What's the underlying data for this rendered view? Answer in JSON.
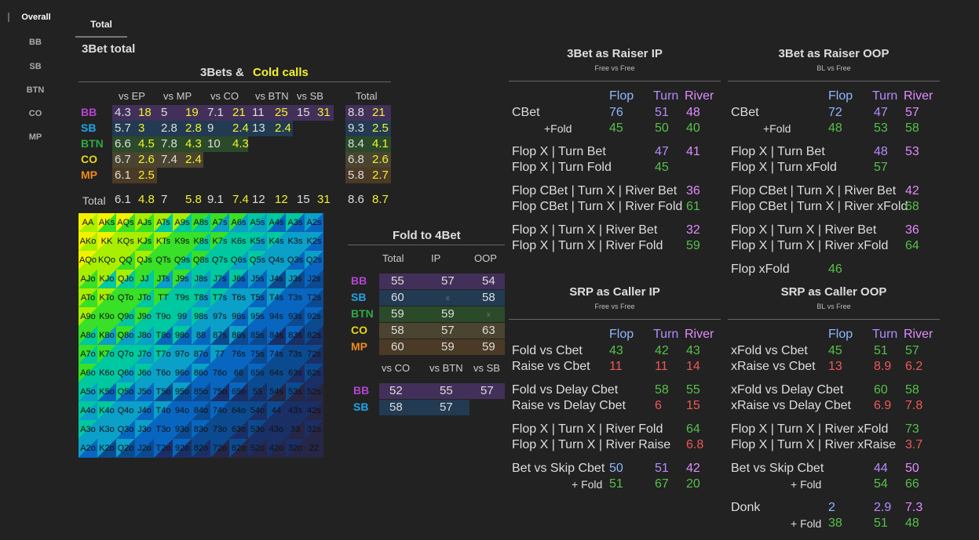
{
  "nav": {
    "items": [
      "Overall",
      "BB",
      "SB",
      "BTN",
      "CO",
      "MP"
    ]
  },
  "tab": "Total",
  "page_title": "3Bet total",
  "threebet": {
    "title_a": "3Bets &",
    "title_b": "Cold calls",
    "cols": [
      "vs EP",
      "vs MP",
      "vs CO",
      "vs BTN",
      "vs SB",
      "Total"
    ],
    "rows": [
      {
        "pos": "BB",
        "cells": [
          "4.3",
          "18",
          "5",
          "19",
          "7.1",
          "21",
          "11",
          "25",
          "15",
          "31"
        ],
        "total": [
          "8.8",
          "21"
        ]
      },
      {
        "pos": "SB",
        "cells": [
          "5.7",
          "3",
          "2.8",
          "2.8",
          "9",
          "2.4",
          "13",
          "2.4",
          "",
          ""
        ],
        "total": [
          "9.3",
          "2.5"
        ]
      },
      {
        "pos": "BTN",
        "cells": [
          "6.6",
          "4.5",
          "7.8",
          "4.3",
          "10",
          "4.3",
          "",
          "",
          "",
          ""
        ],
        "total": [
          "8.4",
          "4.1"
        ]
      },
      {
        "pos": "CO",
        "cells": [
          "6.7",
          "2.6",
          "7.4",
          "2.4",
          "",
          "",
          "",
          "",
          "",
          ""
        ],
        "total": [
          "6.8",
          "2.6"
        ]
      },
      {
        "pos": "MP",
        "cells": [
          "6.1",
          "2.5",
          "",
          "",
          "",
          "",
          "",
          "",
          "",
          ""
        ],
        "total": [
          "5.8",
          "2.7"
        ]
      }
    ],
    "total_label": "Total",
    "totals": [
      "6.1",
      "4.8",
      "7",
      "5.8",
      "9.1",
      "7.4",
      "12",
      "12",
      "15",
      "31"
    ],
    "grand_total": [
      "8.6",
      "8.7"
    ]
  },
  "matrix": {
    "ranks": [
      "A",
      "K",
      "Q",
      "J",
      "T",
      "9",
      "8",
      "7",
      "6",
      "5",
      "4",
      "3",
      "2"
    ]
  },
  "fold4bet": {
    "title": "Fold to 4Bet",
    "cols": [
      "Total",
      "IP",
      "OOP"
    ],
    "rows": [
      {
        "pos": "BB",
        "vals": [
          "55",
          "57",
          "54"
        ]
      },
      {
        "pos": "SB",
        "vals": [
          "60",
          "x",
          "58"
        ]
      },
      {
        "pos": "BTN",
        "vals": [
          "59",
          "59",
          "x"
        ]
      },
      {
        "pos": "CO",
        "vals": [
          "58",
          "57",
          "63"
        ]
      },
      {
        "pos": "MP",
        "vals": [
          "60",
          "59",
          "59"
        ]
      }
    ],
    "cols2": [
      "vs CO",
      "vs BTN",
      "vs SB"
    ],
    "rows2": [
      {
        "pos": "BB",
        "vals": [
          "52",
          "55",
          "57"
        ]
      },
      {
        "pos": "SB",
        "vals": [
          "58",
          "57",
          ""
        ]
      }
    ]
  },
  "panels": [
    {
      "title": "3Bet as Raiser IP",
      "sub": "Free vs Free",
      "cols": [
        "Flop",
        "Turn",
        "River"
      ],
      "lines": [
        {
          "l": "CBet",
          "v": [
            "76",
            "51",
            "48"
          ],
          "c": [
            "b",
            "p",
            "pk"
          ]
        },
        {
          "l": "+Fold",
          "v": [
            "45",
            "50",
            "40"
          ],
          "c": [
            "g",
            "g",
            "g"
          ],
          "ind": true
        },
        {
          "l": "Flop X | Turn Bet",
          "v": [
            "",
            "47",
            "41"
          ],
          "c": [
            "",
            "p",
            "pk"
          ],
          "gap": true
        },
        {
          "l": "Flop X | Turn Fold",
          "v": [
            "",
            "45",
            ""
          ],
          "c": [
            "",
            "g",
            ""
          ]
        },
        {
          "l": "Flop CBet | Turn X | River Bet",
          "v": [
            "",
            "",
            "36"
          ],
          "c": [
            "",
            "",
            "pk"
          ],
          "gap": true
        },
        {
          "l": "Flop CBet | Turn X | River Fold",
          "v": [
            "",
            "",
            "61"
          ],
          "c": [
            "",
            "",
            "g"
          ]
        },
        {
          "l": "Flop X | Turn X | River Bet",
          "v": [
            "",
            "",
            "32"
          ],
          "c": [
            "",
            "",
            "pk"
          ],
          "gap": true
        },
        {
          "l": "Flop X | Turn X | River Fold",
          "v": [
            "",
            "",
            "59"
          ],
          "c": [
            "",
            "",
            "g"
          ]
        }
      ]
    },
    {
      "title": "3Bet as Raiser OOP",
      "sub": "BL vs Free",
      "cols": [
        "Flop",
        "Turn",
        "River"
      ],
      "lines": [
        {
          "l": "CBet",
          "v": [
            "72",
            "47",
            "57"
          ],
          "c": [
            "b",
            "p",
            "pk"
          ]
        },
        {
          "l": "+Fold",
          "v": [
            "48",
            "53",
            "58"
          ],
          "c": [
            "g",
            "g",
            "g"
          ],
          "ind": true
        },
        {
          "l": "Flop X | Turn Bet",
          "v": [
            "",
            "48",
            "53"
          ],
          "c": [
            "",
            "p",
            "pk"
          ],
          "gap": true
        },
        {
          "l": "Flop X | Turn xFold",
          "v": [
            "",
            "57",
            ""
          ],
          "c": [
            "",
            "g",
            ""
          ]
        },
        {
          "l": "Flop CBet | Turn X | River Bet",
          "v": [
            "",
            "",
            "42"
          ],
          "c": [
            "",
            "",
            "pk"
          ],
          "gap": true
        },
        {
          "l": "Flop CBet | Turn X | River xFold",
          "v": [
            "",
            "",
            "68"
          ],
          "c": [
            "",
            "",
            "g"
          ]
        },
        {
          "l": "Flop X | Turn X | River Bet",
          "v": [
            "",
            "",
            "36"
          ],
          "c": [
            "",
            "",
            "pk"
          ],
          "gap": true
        },
        {
          "l": "Flop X | Turn X | River xFold",
          "v": [
            "",
            "",
            "64"
          ],
          "c": [
            "",
            "",
            "g"
          ]
        },
        {
          "l": "Flop xFold",
          "v": [
            "46",
            "",
            ""
          ],
          "c": [
            "g",
            "",
            ""
          ],
          "gap": true
        }
      ]
    },
    {
      "title": "SRP as Caller IP",
      "sub": "Free vs Free",
      "cols": [
        "Flop",
        "Turn",
        "River"
      ],
      "lines": [
        {
          "l": "Fold vs Cbet",
          "v": [
            "43",
            "42",
            "43"
          ],
          "c": [
            "g",
            "g",
            "g"
          ]
        },
        {
          "l": "Raise vs Cbet",
          "v": [
            "11",
            "11",
            "14"
          ],
          "c": [
            "r",
            "r",
            "r"
          ]
        },
        {
          "l": "Fold vs Delay Cbet",
          "v": [
            "",
            "58",
            "55"
          ],
          "c": [
            "",
            "g",
            "g"
          ],
          "gap": true
        },
        {
          "l": "Raise vs Delay Cbet",
          "v": [
            "",
            "6",
            "15"
          ],
          "c": [
            "",
            "r",
            "r"
          ]
        },
        {
          "l": "Flop X | Turn X | River Fold",
          "v": [
            "",
            "",
            "64"
          ],
          "c": [
            "",
            "",
            "g"
          ],
          "gap": true
        },
        {
          "l": "Flop X | Turn X | River Raise",
          "v": [
            "",
            "",
            "6.8"
          ],
          "c": [
            "",
            "",
            "r"
          ]
        },
        {
          "l": "Bet vs Skip Cbet",
          "v": [
            "50",
            "51",
            "42"
          ],
          "c": [
            "b",
            "p",
            "pk"
          ],
          "gap": true
        },
        {
          "l": "+ Fold",
          "v": [
            "51",
            "67",
            "20"
          ],
          "c": [
            "g",
            "g",
            "g"
          ],
          "ind": true
        }
      ]
    },
    {
      "title": "SRP as Caller OOP",
      "sub": "BL vs Free",
      "cols": [
        "Flop",
        "Turn",
        "River"
      ],
      "lines": [
        {
          "l": "xFold vs Cbet",
          "v": [
            "45",
            "51",
            "57"
          ],
          "c": [
            "g",
            "g",
            "g"
          ]
        },
        {
          "l": "xRaise vs Cbet",
          "v": [
            "13",
            "8.9",
            "6.2"
          ],
          "c": [
            "r",
            "r",
            "r"
          ]
        },
        {
          "l": "xFold vs Delay Cbet",
          "v": [
            "",
            "60",
            "58"
          ],
          "c": [
            "",
            "g",
            "g"
          ],
          "gap": true
        },
        {
          "l": "xRaise vs Delay Cbet",
          "v": [
            "",
            "6.9",
            "7.8"
          ],
          "c": [
            "",
            "r",
            "r"
          ]
        },
        {
          "l": "Flop X | Turn X | River xFold",
          "v": [
            "",
            "",
            "73"
          ],
          "c": [
            "",
            "",
            "g"
          ],
          "gap": true
        },
        {
          "l": "Flop X | Turn X | River xRaise",
          "v": [
            "",
            "",
            "3.7"
          ],
          "c": [
            "",
            "",
            "r"
          ]
        },
        {
          "l": "Bet vs Skip Cbet",
          "v": [
            "",
            "44",
            "50"
          ],
          "c": [
            "",
            "p",
            "pk"
          ],
          "gap": true
        },
        {
          "l": "+ Fold",
          "v": [
            "",
            "54",
            "66"
          ],
          "c": [
            "",
            "g",
            "g"
          ],
          "ind": true
        },
        {
          "l": "Donk",
          "v": [
            "2",
            "2.9",
            "7.3"
          ],
          "c": [
            "b",
            "p",
            "pk"
          ],
          "gap": true
        },
        {
          "l": "+ Fold",
          "v": [
            "38",
            "51",
            "48"
          ],
          "c": [
            "g",
            "g",
            "g"
          ],
          "ind": true
        }
      ]
    }
  ]
}
